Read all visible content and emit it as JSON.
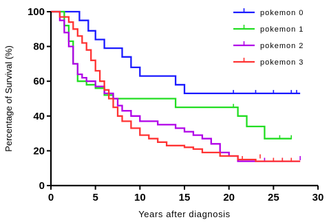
{
  "chart_data": {
    "type": "line",
    "xlabel": "Years after diagnosis",
    "ylabel": "Percentage of Survival (%)",
    "xlim": [
      0,
      30
    ],
    "ylim": [
      0,
      100
    ],
    "x_ticks": [
      0,
      5,
      10,
      15,
      20,
      25,
      30
    ],
    "y_ticks": [
      0,
      20,
      40,
      60,
      80,
      100
    ],
    "grid": false,
    "legend_position": "top-right",
    "series": [
      {
        "name": "pokemon 0",
        "color": "#1a1aff",
        "step_points": [
          [
            0,
            100
          ],
          [
            3.2,
            100
          ],
          [
            3.2,
            95
          ],
          [
            4.2,
            95
          ],
          [
            4.2,
            89
          ],
          [
            5,
            89
          ],
          [
            5,
            84
          ],
          [
            6,
            84
          ],
          [
            6,
            79
          ],
          [
            8,
            79
          ],
          [
            8,
            74
          ],
          [
            9,
            74
          ],
          [
            9,
            68
          ],
          [
            10,
            68
          ],
          [
            10,
            63
          ],
          [
            14,
            63
          ],
          [
            14,
            58
          ],
          [
            15,
            58
          ],
          [
            15,
            53
          ],
          [
            28,
            53
          ]
        ],
        "censor_marks": [
          [
            20.5,
            53
          ],
          [
            23,
            53
          ],
          [
            25,
            53
          ],
          [
            27,
            53
          ],
          [
            27.6,
            53
          ]
        ]
      },
      {
        "name": "pokemon 1",
        "color": "#22dd22",
        "step_points": [
          [
            0,
            100
          ],
          [
            1.5,
            100
          ],
          [
            1.5,
            92
          ],
          [
            2,
            92
          ],
          [
            2,
            83
          ],
          [
            2.5,
            83
          ],
          [
            2.5,
            70
          ],
          [
            3,
            70
          ],
          [
            3,
            60
          ],
          [
            4,
            60
          ],
          [
            4,
            58
          ],
          [
            5,
            58
          ],
          [
            5,
            56
          ],
          [
            6,
            56
          ],
          [
            6,
            52
          ],
          [
            7,
            52
          ],
          [
            7,
            50
          ],
          [
            14,
            50
          ],
          [
            14,
            45
          ],
          [
            21,
            45
          ],
          [
            21,
            40
          ],
          [
            22,
            40
          ],
          [
            22,
            34
          ],
          [
            24,
            34
          ],
          [
            24,
            27
          ],
          [
            27,
            27
          ]
        ],
        "censor_marks": [
          [
            20.5,
            45
          ],
          [
            25.7,
            27
          ],
          [
            27,
            27
          ]
        ]
      },
      {
        "name": "pokemon 2",
        "color": "#b000e8",
        "step_points": [
          [
            0,
            100
          ],
          [
            1,
            100
          ],
          [
            1,
            95
          ],
          [
            1.5,
            95
          ],
          [
            1.5,
            88
          ],
          [
            2,
            88
          ],
          [
            2,
            80
          ],
          [
            2.5,
            80
          ],
          [
            2.5,
            70
          ],
          [
            3,
            70
          ],
          [
            3,
            64
          ],
          [
            3.5,
            64
          ],
          [
            3.5,
            62
          ],
          [
            4,
            62
          ],
          [
            4,
            60
          ],
          [
            5,
            60
          ],
          [
            5,
            57
          ],
          [
            6,
            57
          ],
          [
            6,
            53
          ],
          [
            7,
            53
          ],
          [
            7,
            50
          ],
          [
            7.5,
            50
          ],
          [
            7.5,
            46
          ],
          [
            8,
            46
          ],
          [
            8,
            43
          ],
          [
            9,
            43
          ],
          [
            9,
            40
          ],
          [
            10,
            40
          ],
          [
            10,
            37
          ],
          [
            12,
            37
          ],
          [
            12,
            35
          ],
          [
            14,
            35
          ],
          [
            14,
            33
          ],
          [
            15,
            33
          ],
          [
            15,
            31
          ],
          [
            16,
            31
          ],
          [
            16,
            29
          ],
          [
            17,
            29
          ],
          [
            17,
            27
          ],
          [
            18,
            27
          ],
          [
            18,
            24
          ],
          [
            19,
            24
          ],
          [
            19,
            19
          ],
          [
            20,
            19
          ],
          [
            20,
            17
          ],
          [
            21,
            17
          ],
          [
            21,
            14
          ],
          [
            28,
            14
          ]
        ],
        "censor_marks": [
          [
            24,
            14
          ],
          [
            26,
            14
          ],
          [
            28,
            15
          ]
        ]
      },
      {
        "name": "pokemon 3",
        "color": "#ff3333",
        "step_points": [
          [
            0,
            100
          ],
          [
            1,
            100
          ],
          [
            1,
            97
          ],
          [
            2,
            97
          ],
          [
            2,
            94
          ],
          [
            2.5,
            94
          ],
          [
            2.5,
            90
          ],
          [
            3,
            90
          ],
          [
            3,
            86
          ],
          [
            3.5,
            86
          ],
          [
            3.5,
            82
          ],
          [
            4,
            82
          ],
          [
            4,
            78
          ],
          [
            4.5,
            78
          ],
          [
            4.5,
            72
          ],
          [
            5,
            72
          ],
          [
            5,
            66
          ],
          [
            5.5,
            66
          ],
          [
            5.5,
            60
          ],
          [
            6,
            60
          ],
          [
            6,
            55
          ],
          [
            6.5,
            55
          ],
          [
            6.5,
            50
          ],
          [
            7,
            50
          ],
          [
            7,
            45
          ],
          [
            7.5,
            45
          ],
          [
            7.5,
            40
          ],
          [
            8,
            40
          ],
          [
            8,
            37
          ],
          [
            9,
            37
          ],
          [
            9,
            33
          ],
          [
            10,
            33
          ],
          [
            10,
            29
          ],
          [
            11,
            29
          ],
          [
            11,
            27
          ],
          [
            12,
            27
          ],
          [
            12,
            25
          ],
          [
            13,
            25
          ],
          [
            13,
            23
          ],
          [
            15,
            23
          ],
          [
            15,
            22
          ],
          [
            16,
            22
          ],
          [
            16,
            21
          ],
          [
            17,
            21
          ],
          [
            17,
            19
          ],
          [
            19,
            19
          ],
          [
            19,
            17
          ],
          [
            21,
            17
          ],
          [
            21,
            15
          ],
          [
            23,
            15
          ],
          [
            23,
            14
          ],
          [
            28,
            14
          ]
        ],
        "censor_marks": [
          [
            21.5,
            15
          ],
          [
            23.5,
            16
          ],
          [
            25,
            14
          ],
          [
            26,
            14
          ],
          [
            27,
            14
          ]
        ]
      }
    ]
  }
}
